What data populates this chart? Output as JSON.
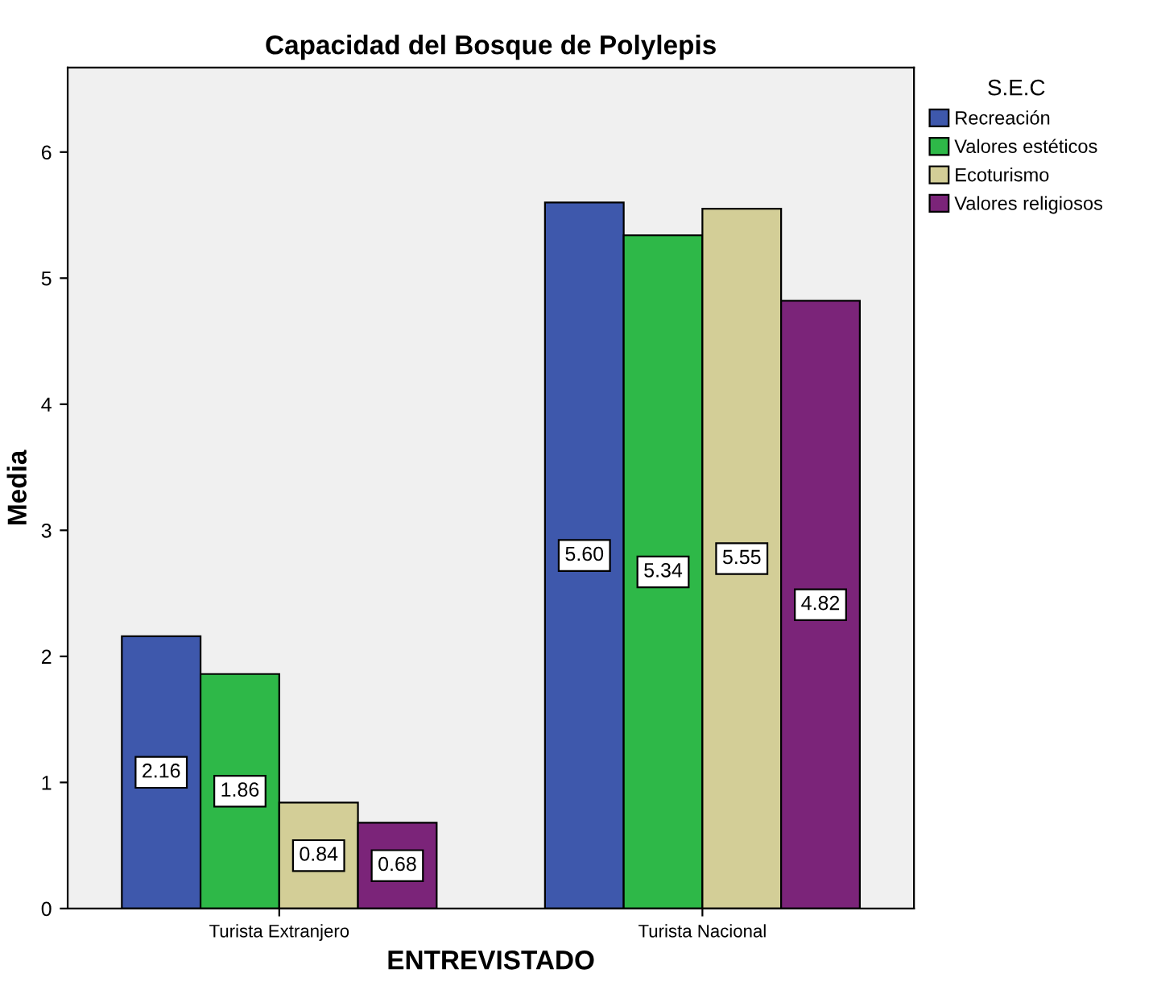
{
  "chart_data": {
    "type": "bar",
    "title": "Capacidad del Bosque de Polylepis",
    "xlabel": "ENTREVISTADO",
    "ylabel": "Media",
    "legend_title": "S.E.C",
    "categories": [
      "Turista Extranjero",
      "Turista Nacional"
    ],
    "series": [
      {
        "name": "Recreación",
        "color": "#3e58ac",
        "values": [
          2.16,
          5.6
        ],
        "value_labels": [
          "2.16",
          "5.60"
        ]
      },
      {
        "name": "Valores estéticos",
        "color": "#2eb848",
        "values": [
          1.86,
          5.34
        ],
        "value_labels": [
          "1.86",
          "5.34"
        ]
      },
      {
        "name": "Ecoturismo",
        "color": "#d3ce97",
        "values": [
          0.84,
          5.55
        ],
        "value_labels": [
          "0.84",
          "5.55"
        ]
      },
      {
        "name": "Valores religiosos",
        "color": "#7b2479",
        "values": [
          0.68,
          4.82
        ],
        "value_labels": [
          "0.68",
          "4.82"
        ]
      }
    ],
    "ylim": [
      0,
      6.67
    ],
    "yticks": [
      0,
      1,
      2,
      3,
      4,
      5,
      6
    ],
    "grid": false,
    "legend": "top right"
  }
}
